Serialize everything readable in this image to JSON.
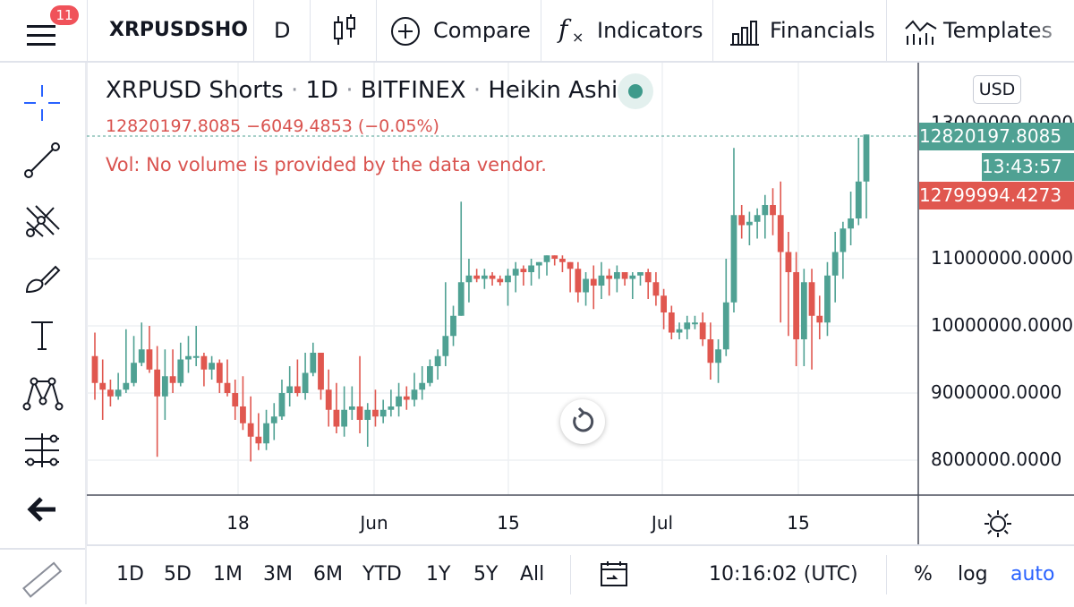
{
  "topbar": {
    "menu_badge": "11",
    "symbol": "XRPUSDSHO",
    "interval": "D",
    "compare": "Compare",
    "indicators": "Indicators",
    "financials": "Financials",
    "templates": "Templates"
  },
  "legend": {
    "symbol": "XRPUSD Shorts",
    "interval": "1D",
    "exchange": "BITFINEX",
    "style": "Heikin Ashi",
    "price_line": "12820197.8085  −6049.4853 (−0.05%)",
    "volume_note": "Vol: No volume is provided by the data vendor."
  },
  "price_scale": {
    "currency": "USD",
    "last_price": "12820197.8085",
    "countdown": "13:43:57",
    "low_marker": "12799994.4273",
    "partial_top_label": "13000000.0000"
  },
  "colors": {
    "up": "#4fa193",
    "down": "#e0574f",
    "last_price": "#4fa193",
    "marker_red": "#e0574f",
    "accent_blue": "#2962ff"
  },
  "bottombar": {
    "ranges": [
      "1D",
      "5D",
      "1M",
      "3M",
      "6M",
      "YTD",
      "1Y",
      "5Y",
      "All"
    ],
    "clock": "10:16:02 (UTC)",
    "percent": "%",
    "log": "log",
    "auto": "auto"
  },
  "left_tools": [
    "crosshair-icon",
    "trend-line-icon",
    "pitchfork-icon",
    "brush-icon",
    "text-tool-icon",
    "pattern-icon",
    "measure-icon",
    "back-arrow-icon",
    "ruler-icon"
  ],
  "chart_data": {
    "type": "candlestick",
    "title": "XRPUSD Shorts · 1D · BITFINEX · Heikin Ashi",
    "xlabel": "",
    "ylabel": "",
    "x_ticks": [
      "18",
      "Jun",
      "15",
      "Jul",
      "15"
    ],
    "y_ticks": [
      "8000000.0000",
      "9000000.0000",
      "10000000.0000",
      "11000000.0000"
    ],
    "ylim": [
      7500000,
      13600000
    ],
    "candles": [
      {
        "o": 9550000,
        "h": 9900000,
        "l": 8900000,
        "c": 9150000
      },
      {
        "o": 9150000,
        "h": 9500000,
        "l": 8600000,
        "c": 9050000
      },
      {
        "o": 9050000,
        "h": 9200000,
        "l": 8800000,
        "c": 8950000
      },
      {
        "o": 8950000,
        "h": 9300000,
        "l": 8900000,
        "c": 9050000
      },
      {
        "o": 9050000,
        "h": 9950000,
        "l": 9000000,
        "c": 9150000
      },
      {
        "o": 9150000,
        "h": 9850000,
        "l": 9100000,
        "c": 9450000
      },
      {
        "o": 9450000,
        "h": 10050000,
        "l": 9400000,
        "c": 9650000
      },
      {
        "o": 9650000,
        "h": 10000000,
        "l": 9300000,
        "c": 9350000
      },
      {
        "o": 9350000,
        "h": 9700000,
        "l": 8050000,
        "c": 8950000
      },
      {
        "o": 8950000,
        "h": 9650000,
        "l": 8600000,
        "c": 9250000
      },
      {
        "o": 9250000,
        "h": 9650000,
        "l": 9000000,
        "c": 9150000
      },
      {
        "o": 9150000,
        "h": 9750000,
        "l": 9100000,
        "c": 9500000
      },
      {
        "o": 9500000,
        "h": 9850000,
        "l": 9300000,
        "c": 9550000
      },
      {
        "o": 9550000,
        "h": 10000000,
        "l": 9400000,
        "c": 9550000
      },
      {
        "o": 9550000,
        "h": 9600000,
        "l": 9100000,
        "c": 9350000
      },
      {
        "o": 9350000,
        "h": 9550000,
        "l": 9200000,
        "c": 9450000
      },
      {
        "o": 9450000,
        "h": 9500000,
        "l": 9000000,
        "c": 9150000
      },
      {
        "o": 9150000,
        "h": 9500000,
        "l": 8950000,
        "c": 9000000
      },
      {
        "o": 9000000,
        "h": 9200000,
        "l": 8600000,
        "c": 8800000
      },
      {
        "o": 8800000,
        "h": 9250000,
        "l": 8450000,
        "c": 8550000
      },
      {
        "o": 8550000,
        "h": 8950000,
        "l": 7980000,
        "c": 8350000
      },
      {
        "o": 8350000,
        "h": 8700000,
        "l": 8150000,
        "c": 8250000
      },
      {
        "o": 8250000,
        "h": 8750000,
        "l": 8150000,
        "c": 8550000
      },
      {
        "o": 8550000,
        "h": 8850000,
        "l": 8300000,
        "c": 8650000
      },
      {
        "o": 8650000,
        "h": 9200000,
        "l": 8600000,
        "c": 9000000
      },
      {
        "o": 9000000,
        "h": 9400000,
        "l": 8800000,
        "c": 9100000
      },
      {
        "o": 9100000,
        "h": 9500000,
        "l": 8950000,
        "c": 9000000
      },
      {
        "o": 9000000,
        "h": 9600000,
        "l": 8900000,
        "c": 9300000
      },
      {
        "o": 9300000,
        "h": 9750000,
        "l": 9250000,
        "c": 9600000
      },
      {
        "o": 9600000,
        "h": 9550000,
        "l": 8900000,
        "c": 9050000
      },
      {
        "o": 9050000,
        "h": 9350000,
        "l": 8500000,
        "c": 8750000
      },
      {
        "o": 8750000,
        "h": 9150000,
        "l": 8400000,
        "c": 8500000
      },
      {
        "o": 8500000,
        "h": 9100000,
        "l": 8350000,
        "c": 8750000
      },
      {
        "o": 8750000,
        "h": 9100000,
        "l": 8600000,
        "c": 8800000
      },
      {
        "o": 8800000,
        "h": 9550000,
        "l": 8400000,
        "c": 8600000
      },
      {
        "o": 8600000,
        "h": 8850000,
        "l": 8200000,
        "c": 8750000
      },
      {
        "o": 8750000,
        "h": 9050000,
        "l": 8500000,
        "c": 8650000
      },
      {
        "o": 8650000,
        "h": 8900000,
        "l": 8550000,
        "c": 8750000
      },
      {
        "o": 8750000,
        "h": 9050000,
        "l": 8650000,
        "c": 8800000
      },
      {
        "o": 8800000,
        "h": 9150000,
        "l": 8650000,
        "c": 8950000
      },
      {
        "o": 8950000,
        "h": 9100000,
        "l": 8750000,
        "c": 8900000
      },
      {
        "o": 8900000,
        "h": 9300000,
        "l": 8800000,
        "c": 9050000
      },
      {
        "o": 9050000,
        "h": 9400000,
        "l": 8900000,
        "c": 9150000
      },
      {
        "o": 9150000,
        "h": 9500000,
        "l": 9100000,
        "c": 9400000
      },
      {
        "o": 9400000,
        "h": 9650000,
        "l": 9200000,
        "c": 9550000
      },
      {
        "o": 9550000,
        "h": 10650000,
        "l": 9400000,
        "c": 9850000
      },
      {
        "o": 9850000,
        "h": 10300000,
        "l": 9700000,
        "c": 10150000
      },
      {
        "o": 10150000,
        "h": 11850000,
        "l": 10200000,
        "c": 10650000
      },
      {
        "o": 10650000,
        "h": 11000000,
        "l": 10350000,
        "c": 10750000
      },
      {
        "o": 10750000,
        "h": 10850000,
        "l": 10650000,
        "c": 10700000
      },
      {
        "o": 10700000,
        "h": 10850000,
        "l": 10550000,
        "c": 10750000
      },
      {
        "o": 10750000,
        "h": 10800000,
        "l": 10600000,
        "c": 10700000
      },
      {
        "o": 10700000,
        "h": 10750000,
        "l": 10600000,
        "c": 10650000
      },
      {
        "o": 10650000,
        "h": 10850000,
        "l": 10300000,
        "c": 10750000
      },
      {
        "o": 10750000,
        "h": 10950000,
        "l": 10500000,
        "c": 10850000
      },
      {
        "o": 10850000,
        "h": 10900000,
        "l": 10600000,
        "c": 10800000
      },
      {
        "o": 10800000,
        "h": 11000000,
        "l": 10600000,
        "c": 10900000
      },
      {
        "o": 10900000,
        "h": 10950000,
        "l": 10700000,
        "c": 10950000
      },
      {
        "o": 10950000,
        "h": 11050000,
        "l": 10750000,
        "c": 11050000
      },
      {
        "o": 11050000,
        "h": 11050000,
        "l": 10900000,
        "c": 11000000
      },
      {
        "o": 11000000,
        "h": 11050000,
        "l": 10800000,
        "c": 10950000
      },
      {
        "o": 10950000,
        "h": 10950000,
        "l": 10500000,
        "c": 10850000
      },
      {
        "o": 10850000,
        "h": 10950000,
        "l": 10350000,
        "c": 10500000
      },
      {
        "o": 10500000,
        "h": 10800000,
        "l": 10300000,
        "c": 10700000
      },
      {
        "o": 10700000,
        "h": 10900000,
        "l": 10250000,
        "c": 10600000
      },
      {
        "o": 10600000,
        "h": 10950000,
        "l": 10400000,
        "c": 10750000
      },
      {
        "o": 10750000,
        "h": 10850000,
        "l": 10450000,
        "c": 10700000
      },
      {
        "o": 10700000,
        "h": 10900000,
        "l": 10500000,
        "c": 10800000
      },
      {
        "o": 10800000,
        "h": 10800000,
        "l": 10600000,
        "c": 10700000
      },
      {
        "o": 10700000,
        "h": 10800000,
        "l": 10400000,
        "c": 10750000
      },
      {
        "o": 10750000,
        "h": 10800000,
        "l": 10600000,
        "c": 10800000
      },
      {
        "o": 10800000,
        "h": 10850000,
        "l": 10400000,
        "c": 10650000
      },
      {
        "o": 10650000,
        "h": 10800000,
        "l": 10300000,
        "c": 10450000
      },
      {
        "o": 10450000,
        "h": 10550000,
        "l": 9950000,
        "c": 10200000
      },
      {
        "o": 10200000,
        "h": 10300000,
        "l": 9800000,
        "c": 9900000
      },
      {
        "o": 9900000,
        "h": 10050000,
        "l": 9800000,
        "c": 9950000
      },
      {
        "o": 9950000,
        "h": 10150000,
        "l": 9800000,
        "c": 10050000
      },
      {
        "o": 10050000,
        "h": 10150000,
        "l": 9950000,
        "c": 10050000
      },
      {
        "o": 10050000,
        "h": 10200000,
        "l": 9700000,
        "c": 9800000
      },
      {
        "o": 9800000,
        "h": 10050000,
        "l": 9200000,
        "c": 9450000
      },
      {
        "o": 9450000,
        "h": 9800000,
        "l": 9150000,
        "c": 9650000
      },
      {
        "o": 9650000,
        "h": 11000000,
        "l": 9550000,
        "c": 10350000
      },
      {
        "o": 10350000,
        "h": 12650000,
        "l": 10200000,
        "c": 11650000
      },
      {
        "o": 11650000,
        "h": 11800000,
        "l": 11300000,
        "c": 11500000
      },
      {
        "o": 11500000,
        "h": 11700000,
        "l": 11200000,
        "c": 11550000
      },
      {
        "o": 11550000,
        "h": 11750000,
        "l": 11300000,
        "c": 11650000
      },
      {
        "o": 11650000,
        "h": 11950000,
        "l": 11300000,
        "c": 11800000
      },
      {
        "o": 11800000,
        "h": 12050000,
        "l": 11350000,
        "c": 11650000
      },
      {
        "o": 11650000,
        "h": 12150000,
        "l": 10050000,
        "c": 11100000
      },
      {
        "o": 11100000,
        "h": 11400000,
        "l": 9850000,
        "c": 10800000
      },
      {
        "o": 10800000,
        "h": 11100000,
        "l": 9400000,
        "c": 9800000
      },
      {
        "o": 9800000,
        "h": 10850000,
        "l": 9400000,
        "c": 10650000
      },
      {
        "o": 10650000,
        "h": 10850000,
        "l": 9350000,
        "c": 10150000
      },
      {
        "o": 10150000,
        "h": 10450000,
        "l": 9800000,
        "c": 10050000
      },
      {
        "o": 10050000,
        "h": 10950000,
        "l": 9850000,
        "c": 10750000
      },
      {
        "o": 10750000,
        "h": 11400000,
        "l": 10350000,
        "c": 11100000
      },
      {
        "o": 11100000,
        "h": 11550000,
        "l": 10700000,
        "c": 11450000
      },
      {
        "o": 11450000,
        "h": 12000000,
        "l": 11200000,
        "c": 11600000
      },
      {
        "o": 11600000,
        "h": 12800000,
        "l": 11500000,
        "c": 12150000
      },
      {
        "o": 12150000,
        "h": 12820000,
        "l": 11600000,
        "c": 12850000
      }
    ]
  }
}
